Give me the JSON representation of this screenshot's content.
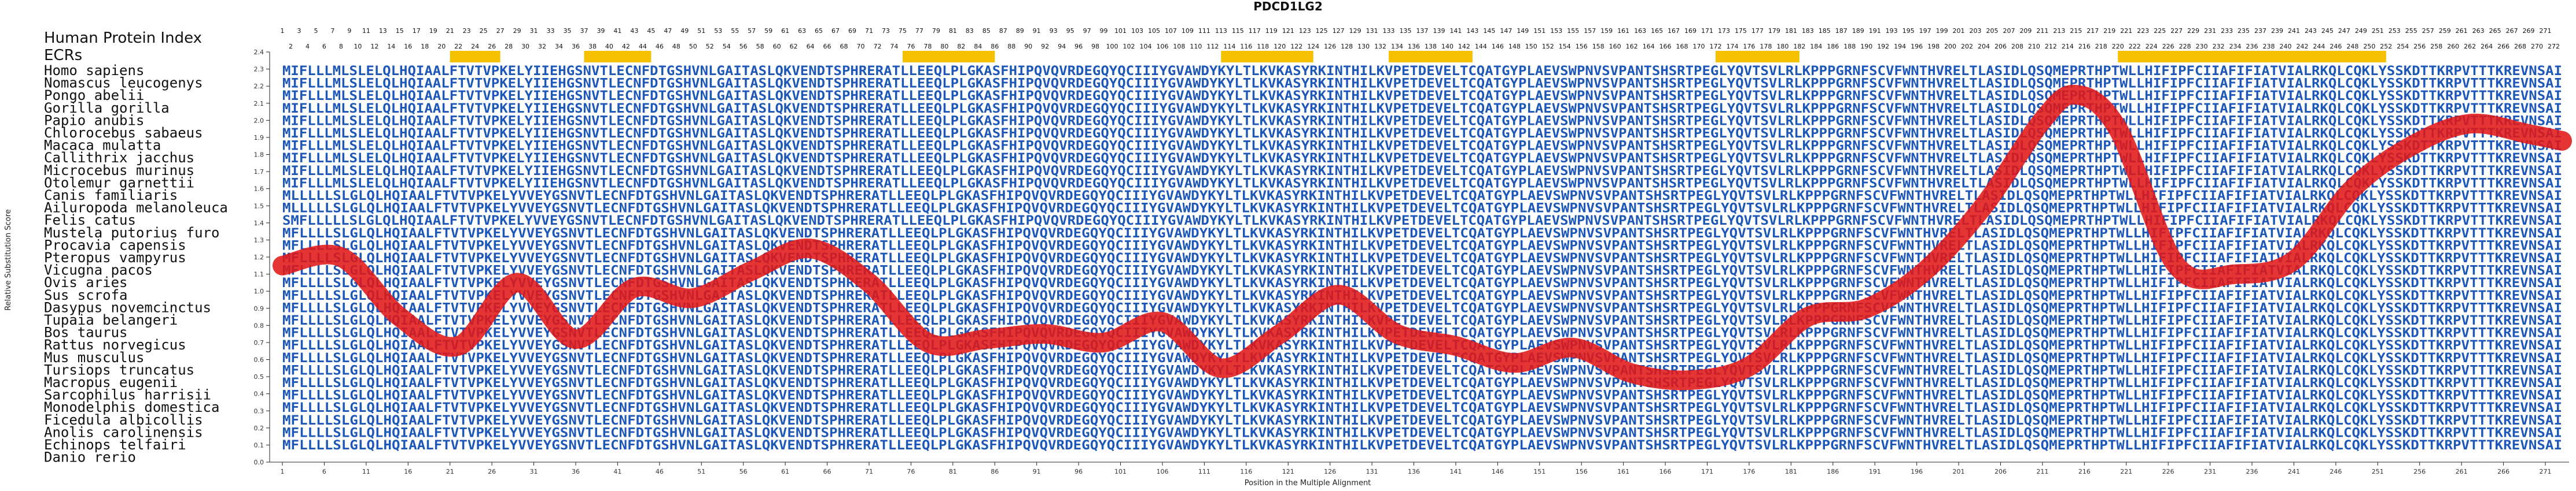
{
  "chart_data": {
    "type": "line",
    "title": "PDCD1LG2",
    "xlabel": "Position in the Multiple Alignment",
    "ylabel": "Relative Substitution Score",
    "xlim": [
      1,
      273
    ],
    "ylim": [
      0,
      2.4
    ],
    "y_ticks": [
      0,
      0.1,
      0.2,
      0.3,
      0.4,
      0.5,
      0.6,
      0.7,
      0.8,
      0.9,
      1.0,
      1.1,
      1.2,
      1.3,
      1.4,
      1.5,
      1.6,
      1.7,
      1.8,
      1.9,
      2.0,
      2.1,
      2.2,
      2.3,
      2.4
    ],
    "x_ticks": [
      1,
      6,
      11,
      16,
      21,
      26,
      31,
      36,
      41,
      46,
      51,
      56,
      61,
      66,
      71,
      76,
      81,
      86,
      91,
      96,
      101,
      106,
      111,
      116,
      121,
      126,
      131,
      136,
      141,
      146,
      151,
      156,
      161,
      166,
      171,
      176,
      181,
      186,
      191,
      196,
      201,
      206,
      211,
      216,
      221,
      226,
      231,
      236,
      241,
      246,
      251,
      256,
      261,
      266,
      271
    ],
    "legend_title": "Human Protein Index",
    "ecr_label": "ECRs",
    "ecr_regions": [
      [
        21,
        27
      ],
      [
        37,
        45
      ],
      [
        75,
        86
      ],
      [
        113,
        124
      ],
      [
        133,
        143
      ],
      [
        172,
        182
      ],
      [
        220,
        252
      ]
    ],
    "top_numbers_odd": [
      1,
      3,
      5,
      7,
      9,
      11,
      13,
      15,
      17,
      19,
      21,
      23,
      25,
      27,
      29,
      31,
      33,
      35,
      37,
      39,
      41,
      43,
      45,
      47,
      49,
      51,
      53,
      55,
      57,
      59,
      61,
      63,
      65,
      67,
      69,
      71,
      73,
      75,
      77,
      79,
      81,
      83,
      85,
      87,
      89,
      91,
      93,
      95,
      97,
      99,
      101,
      103,
      105,
      107,
      109,
      111,
      113,
      115,
      117,
      119,
      121,
      123,
      125,
      127,
      129,
      131,
      133,
      135,
      137,
      139,
      141,
      143,
      145,
      147,
      149,
      151,
      153,
      155,
      157,
      159,
      161,
      163,
      165,
      167,
      169,
      171,
      173,
      175,
      177,
      179,
      181,
      183,
      185,
      187,
      189,
      191,
      193,
      195,
      197,
      199,
      201,
      203,
      205,
      207,
      209,
      211,
      213,
      215,
      217,
      219,
      221,
      223,
      225,
      227,
      229,
      231,
      233,
      235,
      237,
      239,
      241,
      243,
      245,
      247,
      249,
      251,
      253,
      255,
      257,
      259,
      261,
      263,
      265,
      267,
      269,
      271
    ],
    "top_numbers_even": [
      2,
      4,
      6,
      8,
      10,
      12,
      14,
      16,
      18,
      20,
      22,
      24,
      26,
      28,
      30,
      32,
      34,
      36,
      38,
      40,
      42,
      44,
      46,
      48,
      50,
      52,
      54,
      56,
      58,
      60,
      62,
      64,
      66,
      68,
      70,
      72,
      74,
      76,
      78,
      80,
      82,
      84,
      86,
      88,
      90,
      92,
      94,
      96,
      98,
      100,
      102,
      104,
      106,
      108,
      110,
      112,
      114,
      116,
      118,
      120,
      122,
      124,
      126,
      128,
      130,
      132,
      134,
      136,
      138,
      140,
      142,
      144,
      146,
      148,
      150,
      152,
      154,
      156,
      158,
      160,
      162,
      164,
      166,
      168,
      170,
      172,
      174,
      176,
      178,
      180,
      182,
      184,
      186,
      188,
      190,
      192,
      194,
      196,
      198,
      200,
      202,
      204,
      206,
      208,
      210,
      212,
      214,
      216,
      218,
      220,
      222,
      224,
      226,
      228,
      230,
      232,
      234,
      236,
      238,
      240,
      242,
      244,
      246,
      248,
      250,
      252,
      254,
      256,
      258,
      260,
      262,
      264,
      266,
      268,
      270,
      272
    ],
    "species": [
      "Homo sapiens",
      "Nomascus leucogenys",
      "Pongo abelii",
      "Gorilla gorilla",
      "Papio anubis",
      "Chlorocebus sabaeus",
      "Macaca mulatta",
      "Callithrix jacchus",
      "Microcebus murinus",
      "Otolemur garnettii",
      "Canis familiaris",
      "Ailuropoda melanoleuca",
      "Felis catus",
      "Mustela putorius furo",
      "Procavia capensis",
      "Pteropus vampyrus",
      "Vicugna pacos",
      "Ovis aries",
      "Sus scrofa",
      "Dasypus novemcinctus",
      "Tupaia belangeri",
      "Bos taurus",
      "Rattus norvegicus",
      "Mus musculus",
      "Tursiops truncatus",
      "Macropus eugenii",
      "Sarcophilus harrisii",
      "Monodelphis domestica",
      "Ficedula albicollis",
      "Anolis carolinensis",
      "Echinops telfairi",
      "Danio rerio"
    ],
    "sequences": [
      "MIFLLLMLSLELQLHQIAALFTVTVPKELYIIEHGSNVTLECNFDTGSHVNLGAITASLQKVENDTSPHRERATLLEEQLPLGKASFHIPQVQVRDEGQYQCIIIYGVAWDYKYLTLKVKASYRKINTHILKVPETDEVELTCQATGYPLAEVSWPNVSVPANTSHSRTPEGLYQVTSVLRLKPPPGRNFSCVFWNTHVRELTLASIDLQSQMEPRTHPTWLLHIFIPFCIIAFIFIATVIALRKQLCQKLYSSKDTTKRPVTTTKREVNSAI",
      "MIFLLLMLSLELQLHQIAALFTVTVPKELYIIEHGSNVTLECNFDTGSHVNLGAITASLQKVENDTSPHRERATLLEEQLPLGKASFHIPQVQVRDEGQYQCIIIYGVAWDYKYLTLKVKASYRKINTHILKVPETDEVELTCQATGYPLAEVSWPNVSVPANTSHSRTPEGLYQVTSVLRLKPPPGRNFSCVFWNTHVRELTLASIDLQSQMEPRTHPTWLLHIFIPFCIIAFIFIATVIALRKQLCQKLYSSKDTTKRPVTTTKREVNSAI",
      "MIFLLLMLSLELQLHQIAALFTVTVPKELYIIEHGSNVTLECNFDTGSHVNLGAITASLQKVENDTSPHRERATLLEEQLPLGKASFHIPQVQVRDEGQYQCIIIYGVAWDYKYLTLKVKASYRKINTHILKVPETDEVELTCQATGYPLAEVSWPNVSVPANTSHSRTPEGLYQVTSVLRLKPPPGRNFSCVFWNTHVRELTLASIDLQSQMEPRTHPTWLLHIFIPFCIIAFIFIATVIALRKQLCQKLYSSKDTTKRPVTTTKREVNSAI",
      "MIFLLLMLSLELQLHQIAALFTVTVPKELYIIEHGSNVTLECNFDTGSHVNLGAITASLQKVENDTSPHRERATLLEEQLPLGKASFHIPQVQVRDEGQYQCIIIYGVAWDYKYLTLKVKASYRKINTHILKVPETDEVELTCQATGYPLAEVSWPNVSVPANTSHSRTPEGLYQVTSVLRLKPPPGRNFSCVFWNTHVRELTLASIDLQSQMEPRTHPTWLLHIFIPFCIIAFIFIATVIALRKQLCQKLYSSKDTTKRPVTTTKREVNSAI",
      "MIFLLLMLSLELQLHQIAALFTVTVPKELYIIEHGSNVTLECNFDTGSHVNLGAITASLQKVENDTSPHRERATLLEEQLPLGKASFHIPQVQVRDEGQYQCIIIYGVAWDYKYLTLKVKASYRKINTHILKVPETDEVELTCQATGYPLAEVSWPNVSVPANTSHSRTPEGLYQVTSVLRLKPPPGRNFSCVFWNTHVRELTLASIDLQSQMEPRTHPTWLLHIFIPFCIIAFIFIATVIALRKQLCQKLYSSKDTTKRPVTTTKREVNSAI",
      "MIFLLLMLSLELQLHQIAALFTVTVPKELYIIEHGSNVTLECNFDTGSHVNLGAITASLQKVENDTSPHRERATLLEEQLPLGKASFHIPQVQVRDEGQYQCIIIYGVAWDYKYLTLKVKASYRKINTHILKVPETDEVELTCQATGYPLAEVSWPNVSVPANTSHSRTPEGLYQVTSVLRLKPPPGRNFSCVFWNTHVRELTLASIDLQSQMEPRTHPTWLLHIFIPFCIIAFIFIATVIALRKQLCQKLYSSKDTTKRPVTTTKREVNSAI",
      "MIFLLLMLSLELQLHQIAALFTVTVPKELYIIEHGSNVTLECNFDTGSHVNLGAITASLQKVENDTSPHRERATLLEEQLPLGKASFHIPQVQVRDEGQYQCIIIYGVAWDYKYLTLKVKASYRKINTHILKVPETDEVELTCQATGYPLAEVSWPNVSVPANTSHSRTPEGLYQVTSVLRLKPPPGRNFSCVFWNTHVRELTLASIDLQSQMEPRTHPTWLLHIFIPFCIIAFIFIATVIALRKQLCQKLYSSKDTTKRPVTTTKREVNSAI",
      "MIFLLLMLSLELQLHQIAALFTVTVPKELYIIEHGSNVTLECNFDTGSHVNLGAITASLQKVENDTSPHRERATLLEEQLPLGKASFHIPQVQVRDEGQYQCIIIYGVAWDYKYLTLKVKASYRKINTHILKVPETDEVELTCQATGYPLAEVSWPNVSVPANTSHSRTPEGLYQVTSVLRLKPPPGRNFSCVFWNTHVRELTLASIDLQSQMEPRTHPTWLLHIFIPFCIIAFIFIATVIALRKQLCQKLYSSKDTTKRPVTTTKREVNSAI",
      "MIFLLLMLSLELQLHQIAALFTVTVPKELYIIEHGSNVTLECNFDTGSHVNLGAITASLQKVENDTSPHRERATLLEEQLPLGKASFHIPQVQVRDEGQYQCIIIYGVAWDYKYLTLKVKASYRKINTHILKVPETDEVELTCQATGYPLAEVSWPNVSVPANTSHSRTPEGLYQVTSVLRLKPPPGRNFSCVFWNTHVRELTLASIDLQSQMEPRTHPTWLLHIFIPFCIIAFIFIATVIALRKQLCQKLYSSKDTTKRPVTTTKREVNSAI",
      "MIFLLLMLSLELQLHQIAALFTVTVPKELYIIEHGSNVTLECNFDTGSHVNLGAITASLQKVENDTSPHRERATLLEEQLPLGKASFHIPQVQVRDEGQYQCIIIYGVAWDYKYLTLKVKASYRKINTHILKVPETDEVELTCQATGYPLAEVSWPNVSVPANTSHSRTPEGLYQVTSVLRLKPPPGRNFSCVFWNTHVRELTLASIDLQSQMEPRTHPTWLLHIFIPFCIIAFIFIATVIALRKQLCQKLYSSKDTTKRPVTTTKREVNSAI",
      "MLLLLLSLGLQLHQIAALFTVTVPKELYVVEYGSNVTLECNFDTGSHVNLGAITASLQKVENDTSPHRERATLLEEQLPLGKASFHIPQVQVRDEGQYQCIIIYGVAWDYKYLTLKVKASYRKINTHILKVPETDEVELTCQATGYPLAEVSWPNVSVPANTSHSRTPEGLYQVTSVLRLKPPPGRNFSCVFWNTHVRELTLASIDLQSQMEPRTHPTWLLHIFIPFCIIAFIFIATVIALRKQLCQKLYSSKDTTKRPVTTTKREVNSAI",
      "MLLLLLSLGLQLHQIAALFTVTVPKELYVVEYGSNVTLECNFDTGSHVNLGAITASLQKVENDTSPHRERATLLEEQLPLGKASFHIPQVQVRDEGQYQCIIIYGVAWDYKYLTLKVKASYRKINTHILKVPETDEVELTCQATGYPLAEVSWPNVSVPANTSHSRTPEGLYQVTSVLRLKPPPGRNFSCVFWNTHVRELTLASIDLQSQMEPRTHPTWLLHIFIPFCIIAFIFIATVIALRKQLCQKLYSSKDTTKRPVTTTKREVNSAI",
      "SMFLLLLLSLGLQLHQIAALFTVTVPKELYVVEYGSNVTLECNFDTGSHVNLGAITASLQKVENDTSPHRERATLLEEQLPLGKASFHIPQVQVRDEGQYQCIIIYGVAWDYKYLTLKVKASYRKINTHILKVPETDEVELTCQATGYPLAEVSWPNVSVPANTSHSRTPEGLYQVTSVLRLKPPPGRNFSCVFWNTHVRELTLASIDLQSQMEPRTHPTWLLHIFIPFCIIAFIFIATVIALRKQLCQKLYSSKDTTKRPVTTTKREVNSAI",
      "MFLLLLSLGLQLHQIAALFTVTVPKELYVVEYGSNVTLECNFDTGSHVNLGAITASLQKVENDTSPHRERATLLEEQLPLGKASFHIPQVQVRDEGQYQCIIIYGVAWDYKYLTLKVKASYRKINTHILKVPETDEVELTCQATGYPLAEVSWPNVSVPANTSHSRTPEGLYQVTSVLRLKPPPGRNFSCVFWNTHVRELTLASIDLQSQMEPRTHPTWLLHIFIPFCIIAFIFIATVIALRKQLCQKLYSSKDTTKRPVTTTKREVNSAI",
      "MFLLLLSLGLQLHQIAALFTVTVPKELYVVEYGSNVTLECNFDTGSHVNLGAITASLQKVENDTSPHRERATLLEEQLPLGKASFHIPQVQVRDEGQYQCIIIYGVAWDYKYLTLKVKASYRKINTHILKVPETDEVELTCQATGYPLAEVSWPNVSVPANTSHSRTPEGLYQVTSVLRLKPPPGRNFSCVFWNTHVRELTLASIDLQSQMEPRTHPTWLLHIFIPFCIIAFIFIATVIALRKQLCQKLYSSKDTTKRPVTTTKREVNSAI",
      "MFLLLLSLGLQLHQIAALFTVTVPKELYVVEYGSNVTLECNFDTGSHVNLGAITASLQKVENDTSPHRERATLLEEQLPLGKASFHIPQVQVRDEGQYQCIIIYGVAWDYKYLTLKVKASYRKINTHILKVPETDEVELTCQATGYPLAEVSWPNVSVPANTSHSRTPEGLYQVTSVLRLKPPPGRNFSCVFWNTHVRELTLASIDLQSQMEPRTHPTWLLHIFIPFCIIAFIFIATVIALRKQLCQKLYSSKDTTKRPVTTTKREVNSAI",
      "MFLLLLSLGLQLHQIAALFTVTVPKELYVVEYGSNVTLECNFDTGSHVNLGAITASLQKVENDTSPHRERATLLEEQLPLGKASFHIPQVQVRDEGQYQCIIIYGVAWDYKYLTLKVKASYRKINTHILKVPETDEVELTCQATGYPLAEVSWPNVSVPANTSHSRTPEGLYQVTSVLRLKPPPGRNFSCVFWNTHVRELTLASIDLQSQMEPRTHPTWLLHIFIPFCIIAFIFIATVIALRKQLCQKLYSSKDTTKRPVTTTKREVNSAI",
      "MFLLLLSLGLQLHQIAALFTVTVPKELYVVEYGSNVTLECNFDTGSHVNLGAITASLQKVENDTSPHRERATLLEEQLPLGKASFHIPQVQVRDEGQYQCIIIYGVAWDYKYLTLKVKASYRKINTHILKVPETDEVELTCQATGYPLAEVSWPNVSVPANTSHSRTPEGLYQVTSVLRLKPPPGRNFSCVFWNTHVRELTLASIDLQSQMEPRTHPTWLLHIFIPFCIIAFIFIATVIALRKQLCQKLYSSKDTTKRPVTTTKREVNSAI",
      "MFLLLLSLGLQLHQIAALFTVTVPKELYVVEYGSNVTLECNFDTGSHVNLGAITASLQKVENDTSPHRERATLLEEQLPLGKASFHIPQVQVRDEGQYQCIIIYGVAWDYKYLTLKVKASYRKINTHILKVPETDEVELTCQATGYPLAEVSWPNVSVPANTSHSRTPEGLYQVTSVLRLKPPPGRNFSCVFWNTHVRELTLASIDLQSQMEPRTHPTWLLHIFIPFCIIAFIFIATVIALRKQLCQKLYSSKDTTKRPVTTTKREVNSAI",
      "MFLLLLSLGLQLHQIAALFTVTVPKELYVVEYGSNVTLECNFDTGSHVNLGAITASLQKVENDTSPHRERATLLEEQLPLGKASFHIPQVQVRDEGQYQCIIIYGVAWDYKYLTLKVKASYRKINTHILKVPETDEVELTCQATGYPLAEVSWPNVSVPANTSHSRTPEGLYQVTSVLRLKPPPGRNFSCVFWNTHVRELTLASIDLQSQMEPRTHPTWLLHIFIPFCIIAFIFIATVIALRKQLCQKLYSSKDTTKRPVTTTKREVNSAI",
      "MFLLLLSLGLQLHQIAALFTVTVPKELYVVEYGSNVTLECNFDTGSHVNLGAITASLQKVENDTSPHRERATLLEEQLPLGKASFHIPQVQVRDEGQYQCIIIYGVAWDYKYLTLKVKASYRKINTHILKVPETDEVELTCQATGYPLAEVSWPNVSVPANTSHSRTPEGLYQVTSVLRLKPPPGRNFSCVFWNTHVRELTLASIDLQSQMEPRTHPTWLLHIFIPFCIIAFIFIATVIALRKQLCQKLYSSKDTTKRPVTTTKREVNSAI",
      "MFLLLLSLGLQLHQIAALFTVTVPKELYVVEYGSNVTLECNFDTGSHVNLGAITASLQKVENDTSPHRERATLLEEQLPLGKASFHIPQVQVRDEGQYQCIIIYGVAWDYKYLTLKVKASYRKINTHILKVPETDEVELTCQATGYPLAEVSWPNVSVPANTSHSRTPEGLYQVTSVLRLKPPPGRNFSCVFWNTHVRELTLASIDLQSQMEPRTHPTWLLHIFIPFCIIAFIFIATVIALRKQLCQKLYSSKDTTKRPVTTTKREVNSAI",
      "MFLLLLSLGLQLHQIAALFTVTVPKELYVVEYGSNVTLECNFDTGSHVNLGAITASLQKVENDTSPHRERATLLEEQLPLGKASFHIPQVQVRDEGQYQCIIIYGVAWDYKYLTLKVKASYRKINTHILKVPETDEVELTCQATGYPLAEVSWPNVSVPANTSHSRTPEGLYQVTSVLRLKPPPGRNFSCVFWNTHVRELTLASIDLQSQMEPRTHPTWLLHIFIPFCIIAFIFIATVIALRKQLCQKLYSSKDTTKRPVTTTKREVNSAI",
      "MFLLLLSLGLQLHQIAALFTVTVPKELYVVEYGSNVTLECNFDTGSHVNLGAITASLQKVENDTSPHRERATLLEEQLPLGKASFHIPQVQVRDEGQYQCIIIYGVAWDYKYLTLKVKASYRKINTHILKVPETDEVELTCQATGYPLAEVSWPNVSVPANTSHSRTPEGLYQVTSVLRLKPPPGRNFSCVFWNTHVRELTLASIDLQSQMEPRTHPTWLLHIFIPFCIIAFIFIATVIALRKQLCQKLYSSKDTTKRPVTTTKREVNSAI",
      "MFLLLLSLGLQLHQIAALFTVTVPKELYVVEYGSNVTLECNFDTGSHVNLGAITASLQKVENDTSPHRERATLLEEQLPLGKASFHIPQVQVRDEGQYQCIIIYGVAWDYKYLTLKVKASYRKINTHILKVPETDEVELTCQATGYPLAEVSWPNVSVPANTSHSRTPEGLYQVTSVLRLKPPPGRNFSCVFWNTHVRELTLASIDLQSQMEPRTHPTWLLHIFIPFCIIAFIFIATVIALRKQLCQKLYSSKDTTKRPVTTTKREVNSAI",
      "MFLLLLSLGLQLHQIAALFTVTVPKELYVVEYGSNVTLECNFDTGSHVNLGAITASLQKVENDTSPHRERATLLEEQLPLGKASFHIPQVQVRDEGQYQCIIIYGVAWDYKYLTLKVKASYRKINTHILKVPETDEVELTCQATGYPLAEVSWPNVSVPANTSHSRTPEGLYQVTSVLRLKPPPGRNFSCVFWNTHVRELTLASIDLQSQMEPRTHPTWLLHIFIPFCIIAFIFIATVIALRKQLCQKLYSSKDTTKRPVTTTKREVNSAI",
      "MFLLLLSLGLQLHQIAALFTVTVPKELYVVEYGSNVTLECNFDTGSHVNLGAITASLQKVENDTSPHRERATLLEEQLPLGKASFHIPQVQVRDEGQYQCIIIYGVAWDYKYLTLKVKASYRKINTHILKVPETDEVELTCQATGYPLAEVSWPNVSVPANTSHSRTPEGLYQVTSVLRLKPPPGRNFSCVFWNTHVRELTLASIDLQSQMEPRTHPTWLLHIFIPFCIIAFIFIATVIALRKQLCQKLYSSKDTTKRPVTTTKREVNSAI",
      "MFLLLLSLGLQLHQIAALFTVTVPKELYVVEYGSNVTLECNFDTGSHVNLGAITASLQKVENDTSPHRERATLLEEQLPLGKASFHIPQVQVRDEGQYQCIIIYGVAWDYKYLTLKVKASYRKINTHILKVPETDEVELTCQATGYPLAEVSWPNVSVPANTSHSRTPEGLYQVTSVLRLKPPPGRNFSCVFWNTHVRELTLASIDLQSQMEPRTHPTWLLHIFIPFCIIAFIFIATVIALRKQLCQKLYSSKDTTKRPVTTTKREVNSAI",
      "MFLLLLSLGLQLHQIAALFTVTVPKELYVVEYGSNVTLECNFDTGSHVNLGAITASLQKVENDTSPHRERATLLEEQLPLGKASFHIPQVQVRDEGQYQCIIIYGVAWDYKYLTLKVKASYRKINTHILKVPETDEVELTCQATGYPLAEVSWPNVSVPANTSHSRTPEGLYQVTSVLRLKPPPGRNFSCVFWNTHVRELTLASIDLQSQMEPRTHPTWLLHIFIPFCIIAFIFIATVIALRKQLCQKLYSSKDTTKRPVTTTKREVNSAI",
      "MFLLLLSLGLQLHQIAALFTVTVPKELYVVEYGSNVTLECNFDTGSHVNLGAITASLQKVENDTSPHRERATLLEEQLPLGKASFHIPQVQVRDEGQYQCIIIYGVAWDYKYLTLKVKASYRKINTHILKVPETDEVELTCQATGYPLAEVSWPNVSVPANTSHSRTPEGLYQVTSVLRLKPPPGRNFSCVFWNTHVRELTLASIDLQSQMEPRTHPTWLLHIFIPFCIIAFIFIATVIALRKQLCQKLYSSKDTTKRPVTTTKREVNSAI",
      "MFLLLLSLGLQLHQIAALFTVTVPKELYVVEYGSNVTLECNFDTGSHVNLGAITASLQKVENDTSPHRERATLLEEQLPLGKASFHIPQVQVRDEGQYQCIIIYGVAWDYKYLTLKVKASYRKINTHILKVPETDEVELTCQATGYPLAEVSWPNVSVPANTSHSRTPEGLYQVTSVLRLKPPPGRNFSCVFWNTHVRELTLASIDLQSQMEPRTHPTWLLHIFIPFCIIAFIFIATVIALRKQLCQKLYSSKDTTKRPVTTTKREVNSAI"
    ],
    "series": [
      {
        "x": [
          1,
          8,
          15,
          22,
          29,
          36,
          43,
          50,
          57,
          64,
          71,
          78,
          85,
          92,
          99,
          106,
          113,
          120,
          127,
          134,
          141,
          148,
          155,
          162,
          169,
          176,
          183,
          190,
          197,
          204,
          211,
          215,
          220,
          227,
          234,
          241,
          248,
          255,
          262,
          269,
          273
        ],
        "values": [
          1.15,
          1.2,
          0.85,
          0.68,
          1.05,
          0.72,
          1.02,
          0.96,
          1.12,
          1.25,
          1.05,
          0.7,
          0.72,
          0.75,
          0.7,
          0.82,
          0.55,
          0.75,
          0.98,
          0.75,
          0.68,
          0.58,
          0.67,
          0.52,
          0.48,
          0.56,
          0.85,
          0.9,
          1.12,
          1.5,
          2.0,
          2.15,
          1.95,
          1.15,
          1.1,
          1.18,
          1.6,
          1.85,
          1.98,
          1.92,
          1.88
        ]
      }
    ],
    "line_color": "#e01818",
    "ecr_color": "#f5c000",
    "seq_color": "#1d57b8"
  }
}
